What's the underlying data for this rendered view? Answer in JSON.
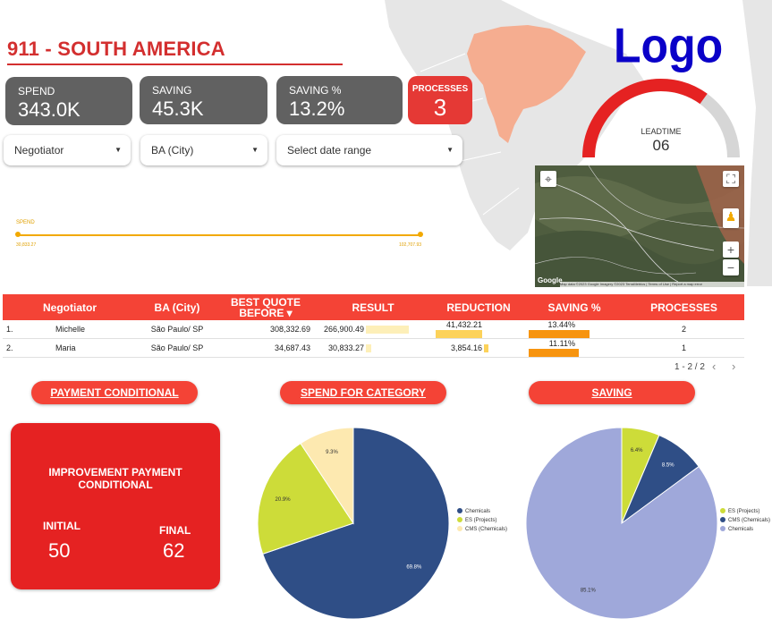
{
  "header": {
    "title": "911 - SOUTH AMERICA",
    "logo_text": "Logo"
  },
  "kpis": [
    {
      "label": "SPEND",
      "value": "343.0K"
    },
    {
      "label": "SAVING",
      "value": "45.3K"
    },
    {
      "label": "SAVING %",
      "value": "13.2%"
    },
    {
      "label": "PROCESSES",
      "value": "3"
    }
  ],
  "filters": [
    {
      "label": "Negotiator"
    },
    {
      "label": "BA (City)"
    },
    {
      "label": "Select date range"
    }
  ],
  "gauge": {
    "label": "LEADTIME",
    "value": "06",
    "fraction": 0.7,
    "color": "#e52222",
    "track_color": "#d6d6d6"
  },
  "map": {
    "attribution": "Map data ©2023 Google Imagery ©2023 TerraMetrics | Terms of Use | Report a map error",
    "google_label": "Google",
    "zoom_in": "+",
    "zoom_out": "−"
  },
  "slider": {
    "label": "SPEND",
    "min": "30,833.27",
    "max": "102,707.93"
  },
  "table": {
    "headers": [
      "Negotiator",
      "BA (City)",
      "BEST QUOTE BEFORE ▾",
      "RESULT",
      "REDUCTION",
      "SAVING %",
      "PROCESSES"
    ],
    "rows": [
      {
        "idx": "1.",
        "negotiator": "Michelle",
        "city": "São Paulo/ SP",
        "best_quote": "308,332.69",
        "result": "266,900.49",
        "result_frac": 1.0,
        "reduction": "41,432.21",
        "reduction_frac": 1.0,
        "saving": "13.44%",
        "saving_frac": 1.0,
        "processes": "2"
      },
      {
        "idx": "2.",
        "negotiator": "Maria",
        "city": "São Paulo/ SP",
        "best_quote": "34,687.43",
        "result": "30,833.27",
        "result_frac": 0.12,
        "reduction": "3,854.16",
        "reduction_frac": 0.09,
        "saving": "11.11%",
        "saving_frac": 0.83,
        "processes": "1"
      }
    ],
    "pager": "1 - 2 / 2"
  },
  "sections": {
    "payment": "PAYMENT CONDITIONAL",
    "spend": "SPEND FOR CATEGORY",
    "saving": "SAVING"
  },
  "payment_box": {
    "title_line1": "IMPROVEMENT PAYMENT",
    "title_line2": "CONDITIONAL",
    "initial_label": "INITIAL",
    "initial_value": "50",
    "final_label": "FINAL",
    "final_value": "62"
  },
  "chart_data": [
    {
      "type": "pie",
      "title": "SPEND FOR CATEGORY",
      "categories": [
        "Chemicals",
        "ES (Projects)",
        "CMS (Chemicals)"
      ],
      "values": [
        69.8,
        20.9,
        9.3
      ],
      "labels": [
        "69.8%",
        "20.9%",
        "9.3%"
      ],
      "colors": [
        "#2f4e86",
        "#cddc39",
        "#fde9b0"
      ],
      "legend": "right"
    },
    {
      "type": "pie",
      "title": "SAVING",
      "categories": [
        "ES (Projects)",
        "CMS (Chemicals)",
        "Chemicals"
      ],
      "values": [
        6.4,
        8.5,
        85.1
      ],
      "labels": [
        "6.4%",
        "8.5%",
        "85.1%"
      ],
      "colors": [
        "#cddc39",
        "#2f4e86",
        "#9fa8da"
      ],
      "legend": "right"
    }
  ]
}
